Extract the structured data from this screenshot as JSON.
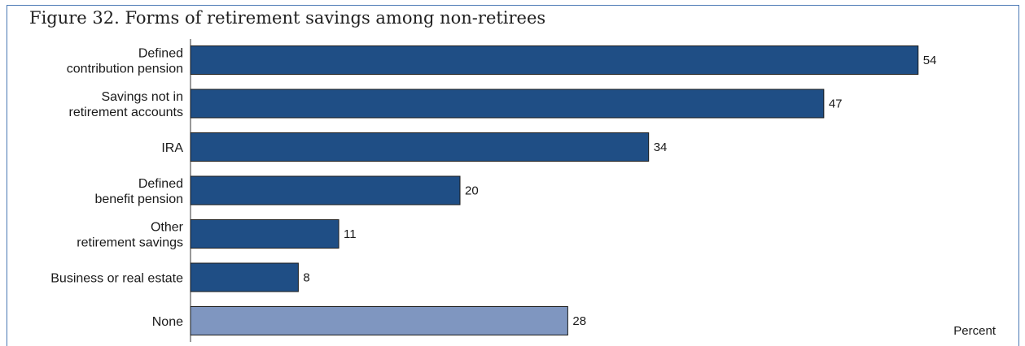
{
  "chart_data": {
    "type": "bar",
    "orientation": "horizontal",
    "title": "Figure 32. Forms of retirement savings among non-retirees",
    "unit_label": "Percent",
    "categories": [
      [
        "Defined",
        "contribution pension"
      ],
      [
        "Savings not in",
        "retirement accounts"
      ],
      [
        "IRA"
      ],
      [
        "Defined",
        "benefit pension"
      ],
      [
        "Other",
        "retirement savings"
      ],
      [
        "Business or real estate"
      ],
      [
        "None"
      ]
    ],
    "values": [
      54,
      47,
      34,
      20,
      11,
      8,
      28
    ],
    "bar_colors": [
      "#1f4e85",
      "#1f4e85",
      "#1f4e85",
      "#1f4e85",
      "#1f4e85",
      "#1f4e85",
      "#7f96c0"
    ],
    "xlim": [
      0,
      56
    ],
    "grid": false,
    "legend": "none"
  }
}
